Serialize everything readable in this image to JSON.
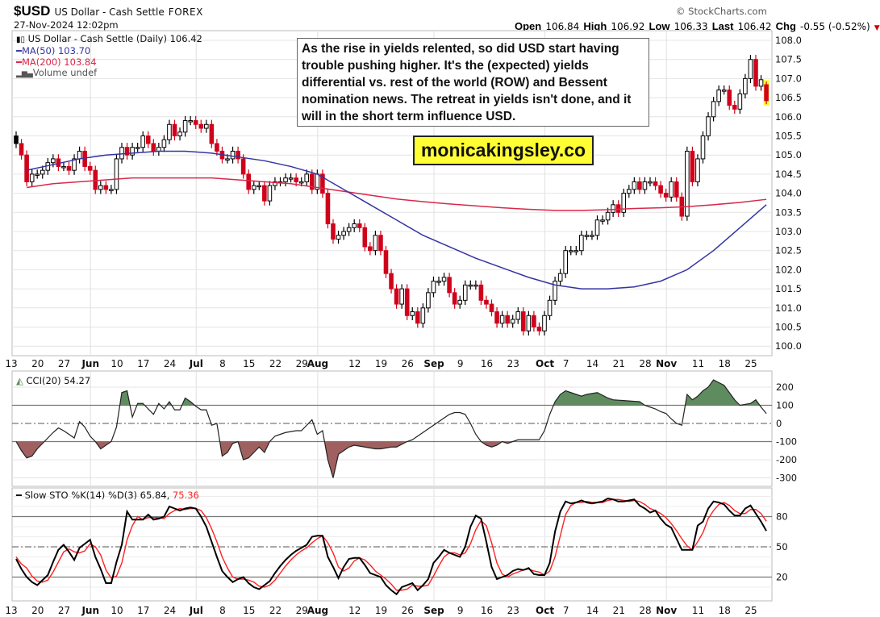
{
  "header": {
    "symbol": "$USD",
    "name": "US Dollar - Cash Settle",
    "exchange": "FOREX",
    "datetime": "27-Nov-2024 12:02pm",
    "copyright": "© StockCharts.com",
    "open_label": "Open",
    "open": "106.84",
    "high_label": "High",
    "high": "106.92",
    "low_label": "Low",
    "low": "106.33",
    "last_label": "Last",
    "last": "106.42",
    "chg_label": "Chg",
    "chg": "-0.55 (-0.52%)",
    "chg_icon": "triangle-down-icon"
  },
  "legend": {
    "price": "US Dollar - Cash Settle (Daily) 106.42",
    "ma50": "MA(50) 103.70",
    "ma200": "MA(200) 103.84",
    "volume": "Volume undef"
  },
  "annotation": "As the rise in yields relented, so did USD start having trouble pushing higher. It's the (expected) yields differential vs. rest of the world (ROW) and Bessent nomination news. The retreat in yields isn't done, and it will in the short term influence USD.",
  "brand": "monicakingsley.co",
  "colors": {
    "up": "#000000",
    "down": "#d0021b",
    "ma50": "#3434a4",
    "ma200": "#d8284a",
    "cci_pos": "#5e8c5e",
    "cci_neg": "#a06060",
    "k": "#000000",
    "d": "#ff2020",
    "highlight": "#ffff33"
  },
  "chart_data": [
    {
      "type": "candlestick",
      "title": "US Dollar - Cash Settle (Daily) 106.42",
      "y_ticks": [
        "100.0",
        "100.5",
        "101.0",
        "101.5",
        "102.0",
        "102.5",
        "103.0",
        "103.5",
        "104.0",
        "104.5",
        "105.0",
        "105.5",
        "106.0",
        "106.5",
        "107.0",
        "107.5",
        "108.0"
      ],
      "ylim": [
        99.8,
        108.25
      ],
      "x_ticks": [
        "13",
        "20",
        "27",
        "Jun",
        "10",
        "17",
        "24",
        "Jul",
        "8",
        "15",
        "22",
        "29",
        "Aug",
        "12",
        "19",
        "26",
        "Sep",
        "9",
        "16",
        "23",
        "Oct",
        "7",
        "14",
        "21",
        "28",
        "Nov",
        "11",
        "18",
        "25"
      ],
      "last_bar": {
        "open": 106.84,
        "high": 106.92,
        "low": 106.33,
        "close": 106.42
      },
      "weeks": [
        {
          "week": "May 13",
          "close": [
            105.3,
            105.0,
            104.3,
            104.5,
            104.5
          ],
          "ma50": 104.6,
          "ma200": 104.15
        },
        {
          "week": "May 20",
          "close": [
            104.6,
            104.8,
            104.9,
            104.7,
            104.7
          ],
          "ma50": 104.75,
          "ma200": 104.25
        },
        {
          "week": "May 27",
          "close": [
            104.6,
            104.9,
            105.1,
            104.7,
            104.6
          ],
          "ma50": 104.9,
          "ma200": 104.3
        },
        {
          "week": "Jun 3",
          "close": [
            104.1,
            104.2,
            104.1,
            104.1,
            104.9
          ],
          "ma50": 105.0,
          "ma200": 104.35
        },
        {
          "week": "Jun 10",
          "close": [
            105.2,
            105.0,
            105.2,
            105.2,
            105.5
          ],
          "ma50": 105.05,
          "ma200": 104.4
        },
        {
          "week": "Jun 17",
          "close": [
            105.3,
            105.1,
            105.2,
            105.4,
            105.8
          ],
          "ma50": 105.1,
          "ma200": 104.4
        },
        {
          "week": "Jun 24",
          "close": [
            105.5,
            105.6,
            105.9,
            105.9,
            105.8
          ],
          "ma50": 105.1,
          "ma200": 104.4
        },
        {
          "week": "Jul 1",
          "close": [
            105.7,
            105.8,
            105.3,
            105.1,
            104.9
          ],
          "ma50": 105.05,
          "ma200": 104.4
        },
        {
          "week": "Jul 8",
          "close": [
            104.9,
            105.1,
            104.9,
            104.5,
            104.1
          ],
          "ma50": 104.95,
          "ma200": 104.35
        },
        {
          "week": "Jul 15",
          "close": [
            104.2,
            104.2,
            103.8,
            104.2,
            104.3
          ],
          "ma50": 104.85,
          "ma200": 104.3
        },
        {
          "week": "Jul 22",
          "close": [
            104.3,
            104.4,
            104.4,
            104.3,
            104.3
          ],
          "ma50": 104.7,
          "ma200": 104.25
        },
        {
          "week": "Jul 29",
          "close": [
            104.5,
            104.1,
            104.5,
            104.0,
            103.2
          ],
          "ma50": 104.5,
          "ma200": 104.15
        },
        {
          "week": "Aug 5",
          "close": [
            102.8,
            102.9,
            103.0,
            103.1,
            103.2
          ],
          "ma50": 104.1,
          "ma200": 104.05
        },
        {
          "week": "Aug 12",
          "close": [
            103.1,
            102.6,
            102.5,
            102.9,
            102.5
          ],
          "ma50": 103.7,
          "ma200": 103.95
        },
        {
          "week": "Aug 19",
          "close": [
            101.9,
            101.5,
            101.1,
            101.5,
            100.8
          ],
          "ma50": 103.3,
          "ma200": 103.85
        },
        {
          "week": "Aug 26",
          "close": [
            100.9,
            100.6,
            101.0,
            101.4,
            101.7
          ],
          "ma50": 102.9,
          "ma200": 103.78
        },
        {
          "week": "Sep 2",
          "close": [
            101.7,
            101.8,
            101.4,
            101.1,
            101.2
          ],
          "ma50": 102.6,
          "ma200": 103.72
        },
        {
          "week": "Sep 9",
          "close": [
            101.6,
            101.6,
            101.6,
            101.2,
            101.1
          ],
          "ma50": 102.3,
          "ma200": 103.67
        },
        {
          "week": "Sep 16",
          "close": [
            100.9,
            100.6,
            100.8,
            100.6,
            100.7
          ],
          "ma50": 102.05,
          "ma200": 103.62
        },
        {
          "week": "Sep 23",
          "close": [
            100.9,
            100.4,
            100.8,
            100.5,
            100.4
          ],
          "ma50": 101.8,
          "ma200": 103.58
        },
        {
          "week": "Sep 30",
          "close": [
            100.8,
            101.2,
            101.7,
            101.9,
            102.5
          ],
          "ma50": 101.6,
          "ma200": 103.55
        },
        {
          "week": "Oct 7",
          "close": [
            102.5,
            102.5,
            102.9,
            102.9,
            102.9
          ],
          "ma50": 101.5,
          "ma200": 103.55
        },
        {
          "week": "Oct 14",
          "close": [
            103.3,
            103.3,
            103.5,
            103.7,
            103.5
          ],
          "ma50": 101.5,
          "ma200": 103.57
        },
        {
          "week": "Oct 21",
          "close": [
            104.0,
            104.1,
            104.3,
            104.1,
            104.3
          ],
          "ma50": 101.55,
          "ma200": 103.6
        },
        {
          "week": "Oct 28",
          "close": [
            104.3,
            104.2,
            104.0,
            103.9,
            104.3
          ],
          "ma50": 101.7,
          "ma200": 103.62
        },
        {
          "week": "Nov 4",
          "close": [
            103.9,
            103.4,
            105.1,
            104.3,
            104.9
          ],
          "ma50": 102.0,
          "ma200": 103.65
        },
        {
          "week": "Nov 11",
          "close": [
            105.5,
            106.0,
            106.4,
            106.7,
            106.7
          ],
          "ma50": 102.5,
          "ma200": 103.7
        },
        {
          "week": "Nov 18",
          "close": [
            106.3,
            106.2,
            106.6,
            107.0,
            107.5
          ],
          "ma50": 103.1,
          "ma200": 103.76
        },
        {
          "week": "Nov 25",
          "close": [
            106.8,
            106.97,
            106.42
          ],
          "ma50": 103.7,
          "ma200": 103.84
        }
      ]
    },
    {
      "type": "line",
      "title": "CCI(20) 54.27",
      "y_ticks": [
        "200",
        "100",
        "0",
        "-100",
        "-200",
        "-300"
      ],
      "levels": [
        100,
        0,
        -100
      ],
      "values": [
        -100,
        -150,
        -190,
        -180,
        -140,
        -110,
        -80,
        -50,
        -25,
        -40,
        -60,
        -80,
        10,
        -20,
        -70,
        -100,
        -140,
        -120,
        -100,
        -20,
        170,
        180,
        35,
        110,
        110,
        80,
        50,
        110,
        80,
        120,
        75,
        75,
        140,
        120,
        95,
        75,
        75,
        -10,
        0,
        -180,
        -160,
        -110,
        -100,
        -200,
        -190,
        -160,
        -130,
        -160,
        -100,
        -70,
        -60,
        -50,
        -45,
        -40,
        -40,
        -10,
        20,
        -60,
        -40,
        -200,
        -300,
        -170,
        -150,
        -130,
        -120,
        -125,
        -130,
        -135,
        -140,
        -140,
        -135,
        -130,
        -130,
        -115,
        -100,
        -90,
        -70,
        -50,
        -30,
        -10,
        10,
        30,
        50,
        60,
        60,
        50,
        0,
        -60,
        -100,
        -120,
        -130,
        -120,
        -100,
        -110,
        -100,
        -90,
        -90,
        -90,
        -90,
        -90,
        -40,
        50,
        120,
        160,
        180,
        170,
        160,
        150,
        160,
        165,
        170,
        155,
        140,
        130,
        128,
        126,
        124,
        122,
        120,
        100,
        90,
        80,
        65,
        55,
        25,
        0,
        -10,
        160,
        130,
        150,
        180,
        200,
        240,
        225,
        210,
        170,
        130,
        100,
        105,
        110,
        130,
        90,
        54.27
      ]
    },
    {
      "type": "line",
      "title": "Slow STO %K(14) %D(3) 65.84, 75.36",
      "title_k": "Slow STO %K(14) %D(3) 65.84,",
      "title_d": "75.36",
      "y_ticks": [
        "80",
        "50",
        "20"
      ],
      "levels": [
        80,
        50,
        20
      ],
      "series": [
        {
          "name": "%K(14)",
          "values": [
            38,
            28,
            20,
            15,
            12,
            17,
            22,
            35,
            47,
            52,
            45,
            37,
            49,
            53,
            57,
            40,
            28,
            14,
            14,
            35,
            52,
            85,
            77,
            77,
            77,
            82,
            77,
            78,
            80,
            90,
            88,
            86,
            88,
            89,
            88,
            80,
            70,
            55,
            40,
            26,
            20,
            15,
            18,
            20,
            14,
            10,
            8,
            12,
            16,
            24,
            31,
            37,
            42,
            46,
            49,
            52,
            60,
            61,
            61,
            40,
            30,
            19,
            30,
            38,
            39,
            39,
            32,
            24,
            22,
            20,
            12,
            7,
            3,
            10,
            12,
            14,
            7,
            12,
            18,
            34,
            40,
            47,
            44,
            42,
            40,
            50,
            70,
            81,
            78,
            55,
            30,
            18,
            20,
            22,
            26,
            28,
            27,
            29,
            23,
            22,
            22,
            34,
            65,
            85,
            95,
            93,
            94,
            96,
            94,
            93,
            94,
            95,
            98,
            97,
            95,
            95,
            96,
            97,
            91,
            88,
            84,
            86,
            78,
            72,
            69,
            58,
            47,
            47,
            47,
            71,
            75,
            88,
            95,
            94,
            92,
            86,
            81,
            81,
            88,
            91,
            83,
            75,
            65.84
          ]
        },
        {
          "name": "%D(3)",
          "values": [
            40,
            33,
            29,
            21,
            16,
            15,
            17,
            25,
            35,
            45,
            48,
            45,
            44,
            46,
            53,
            50,
            42,
            27,
            19,
            21,
            34,
            57,
            71,
            80,
            77,
            79,
            79,
            79,
            78,
            83,
            86,
            88,
            87,
            88,
            88,
            86,
            79,
            68,
            55,
            40,
            29,
            20,
            18,
            18,
            17,
            15,
            11,
            10,
            12,
            17,
            24,
            31,
            37,
            42,
            46,
            49,
            54,
            58,
            61,
            54,
            44,
            30,
            26,
            29,
            36,
            39,
            37,
            32,
            26,
            22,
            18,
            13,
            7,
            7,
            8,
            12,
            11,
            11,
            12,
            21,
            31,
            40,
            44,
            44,
            42,
            44,
            53,
            67,
            76,
            71,
            54,
            34,
            23,
            20,
            23,
            25,
            27,
            28,
            26,
            25,
            22,
            26,
            40,
            61,
            82,
            91,
            94,
            94,
            95,
            94,
            94,
            94,
            96,
            97,
            97,
            96,
            95,
            96,
            95,
            92,
            88,
            86,
            83,
            79,
            73,
            66,
            58,
            51,
            47,
            55,
            64,
            78,
            86,
            92,
            94,
            91,
            86,
            83,
            83,
            87,
            87,
            83,
            75.36
          ]
        }
      ]
    }
  ]
}
